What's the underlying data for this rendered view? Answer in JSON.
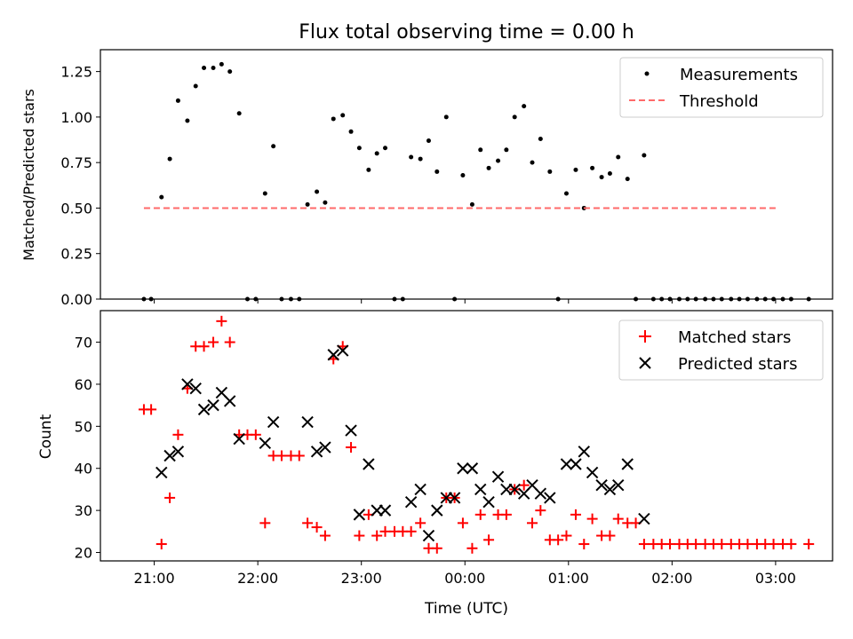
{
  "chart_data": [
    {
      "type": "scatter",
      "title": "Flux total observing time = 0.00 h",
      "xlabel": "",
      "ylabel": "Matched/Predicted stars",
      "x_tick_labels": [],
      "x_range_hours": [
        20.48,
        27.55
      ],
      "ylim": [
        0,
        1.37
      ],
      "y_ticks": [
        0,
        0.25,
        0.5,
        0.75,
        1.0,
        1.25
      ],
      "y_tick_labels": [
        "0.00",
        "0.25",
        "0.50",
        "0.75",
        "1.00",
        "1.25"
      ],
      "legend": {
        "position": "top-right",
        "entries": [
          "Measurements",
          "Threshold"
        ]
      },
      "colors": {
        "measurements": "#000000",
        "threshold": "#ff6a6a"
      },
      "series": [
        {
          "name": "Measurements",
          "marker": "dot",
          "x": [
            20.9,
            20.97,
            21.07,
            21.15,
            21.23,
            21.32,
            21.4,
            21.48,
            21.57,
            21.65,
            21.73,
            21.82,
            21.9,
            21.98,
            22.07,
            22.15,
            22.23,
            22.32,
            22.4,
            22.48,
            22.57,
            22.65,
            22.73,
            22.82,
            22.9,
            22.98,
            23.07,
            23.15,
            23.23,
            23.32,
            23.4,
            23.48,
            23.57,
            23.65,
            23.73,
            23.82,
            23.9,
            23.98,
            24.07,
            24.15,
            24.23,
            24.32,
            24.4,
            24.48,
            24.57,
            24.65,
            24.73,
            24.82,
            24.9,
            24.98,
            25.07,
            25.15,
            25.23,
            25.32,
            25.4,
            25.48,
            25.57,
            25.65,
            25.73,
            25.82,
            25.9,
            25.98,
            26.07,
            26.15,
            26.23,
            26.32,
            26.4,
            26.48,
            26.57,
            26.65,
            26.73,
            26.82,
            26.9,
            26.98,
            27.07,
            27.15,
            27.32
          ],
          "y": [
            0,
            0,
            0.56,
            0.77,
            1.09,
            0.98,
            1.17,
            1.27,
            1.27,
            1.29,
            1.25,
            1.02,
            0,
            0,
            0.58,
            0.84,
            0,
            0,
            0,
            0.52,
            0.59,
            0.53,
            0.99,
            1.01,
            0.92,
            0.83,
            0.71,
            0.8,
            0.83,
            0,
            0,
            0.78,
            0.77,
            0.87,
            0.7,
            1.0,
            0,
            0.68,
            0.52,
            0.82,
            0.72,
            0.76,
            0.82,
            1.0,
            1.06,
            0.75,
            0.88,
            0.7,
            0,
            0.58,
            0.71,
            0.5,
            0.72,
            0.67,
            0.69,
            0.78,
            0.66,
            0,
            0.79,
            0,
            0,
            0,
            0,
            0,
            0,
            0,
            0,
            0,
            0,
            0,
            0,
            0,
            0,
            0,
            0,
            0,
            0
          ]
        },
        {
          "name": "Threshold",
          "marker": "dashed-line",
          "x": [
            20.9,
            27.0
          ],
          "y": [
            0.5,
            0.5
          ]
        }
      ]
    },
    {
      "type": "scatter",
      "title": "",
      "xlabel": "Time (UTC)",
      "ylabel": "Count",
      "x_range_hours": [
        20.48,
        27.55
      ],
      "x_ticks": [
        21,
        22,
        23,
        24,
        25,
        26,
        27
      ],
      "x_tick_labels": [
        "21:00",
        "22:00",
        "23:00",
        "00:00",
        "01:00",
        "02:00",
        "03:00"
      ],
      "ylim": [
        18,
        77.5
      ],
      "y_ticks": [
        20,
        30,
        40,
        50,
        60,
        70
      ],
      "y_tick_labels": [
        "20",
        "30",
        "40",
        "50",
        "60",
        "70"
      ],
      "legend": {
        "position": "top-right",
        "entries": [
          "Matched stars",
          "Predicted stars"
        ]
      },
      "colors": {
        "matched": "#ff0000",
        "predicted": "#000000"
      },
      "series": [
        {
          "name": "Matched stars",
          "marker": "plus",
          "x": [
            20.9,
            20.97,
            21.07,
            21.15,
            21.23,
            21.32,
            21.4,
            21.48,
            21.57,
            21.65,
            21.73,
            21.82,
            21.9,
            21.98,
            22.07,
            22.15,
            22.23,
            22.32,
            22.4,
            22.48,
            22.57,
            22.65,
            22.73,
            22.82,
            22.9,
            22.98,
            23.07,
            23.15,
            23.23,
            23.32,
            23.4,
            23.48,
            23.57,
            23.65,
            23.73,
            23.82,
            23.9,
            23.98,
            24.07,
            24.15,
            24.23,
            24.32,
            24.4,
            24.48,
            24.57,
            24.65,
            24.73,
            24.82,
            24.9,
            24.98,
            25.07,
            25.15,
            25.23,
            25.32,
            25.4,
            25.48,
            25.57,
            25.65,
            25.73,
            25.82,
            25.9,
            25.98,
            26.07,
            26.15,
            26.23,
            26.32,
            26.4,
            26.48,
            26.57,
            26.65,
            26.73,
            26.82,
            26.9,
            26.98,
            27.07,
            27.15,
            27.32
          ],
          "y": [
            54,
            54,
            22,
            33,
            48,
            59,
            69,
            69,
            70,
            75,
            70,
            48,
            48,
            48,
            27,
            43,
            43,
            43,
            43,
            27,
            26,
            24,
            66,
            69,
            45,
            24,
            29,
            24,
            25,
            25,
            25,
            25,
            27,
            21,
            21,
            33,
            33,
            27,
            21,
            29,
            23,
            29,
            29,
            35,
            36,
            27,
            30,
            23,
            23,
            24,
            29,
            22,
            28,
            24,
            24,
            28,
            27,
            27,
            22,
            22,
            22,
            22,
            22,
            22,
            22,
            22,
            22,
            22,
            22,
            22,
            22,
            22,
            22,
            22,
            22,
            22,
            22
          ]
        },
        {
          "name": "Predicted stars",
          "marker": "x",
          "x": [
            21.07,
            21.15,
            21.23,
            21.32,
            21.4,
            21.48,
            21.57,
            21.65,
            21.73,
            21.82,
            22.07,
            22.15,
            22.48,
            22.57,
            22.65,
            22.73,
            22.82,
            22.9,
            22.98,
            23.07,
            23.15,
            23.23,
            23.48,
            23.57,
            23.65,
            23.73,
            23.82,
            23.9,
            23.98,
            24.07,
            24.15,
            24.23,
            24.32,
            24.4,
            24.48,
            24.57,
            24.65,
            24.73,
            24.82,
            24.98,
            25.07,
            25.15,
            25.23,
            25.32,
            25.4,
            25.48,
            25.57,
            25.73
          ],
          "y": [
            39,
            43,
            44,
            60,
            59,
            54,
            55,
            58,
            56,
            47,
            46,
            51,
            51,
            44,
            45,
            67,
            68,
            49,
            29,
            41,
            30,
            30,
            32,
            35,
            24,
            30,
            33,
            33,
            40,
            40,
            35,
            32,
            38,
            35,
            35,
            34,
            36,
            34,
            33,
            41,
            41,
            44,
            39,
            36,
            35,
            36,
            41,
            28
          ]
        }
      ]
    }
  ]
}
